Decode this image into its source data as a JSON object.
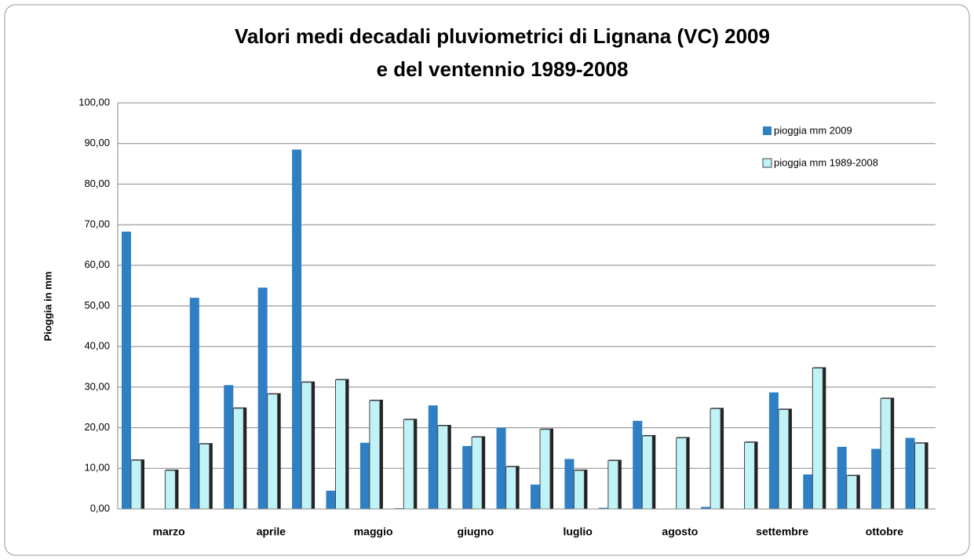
{
  "chart_data": {
    "type": "bar",
    "title": "Valori medi decadali pluviometrici di Lignana (VC) 2009",
    "subtitle": "e del ventennio 1989-2008",
    "y_label": "Pioggia in mm",
    "categories": [
      null,
      "marzo",
      null,
      null,
      "aprile",
      null,
      null,
      "maggio",
      null,
      null,
      "giugno",
      null,
      null,
      "luglio",
      null,
      null,
      "agosto",
      null,
      null,
      "settembre",
      null,
      null,
      "ottobre",
      null
    ],
    "series": [
      {
        "name": "pioggia mm 2009",
        "color": "#2e7fc4",
        "values": [
          68.3,
          0,
          52,
          30.5,
          54.5,
          88.5,
          4.5,
          16.3,
          0.2,
          25.5,
          15.5,
          20,
          6,
          12.3,
          0.3,
          21.7,
          0,
          0.5,
          0,
          28.7,
          8.5,
          15.3,
          14.8,
          17.5
        ]
      },
      {
        "name": "pioggia mm 1989-2008",
        "color": "#bff3f8",
        "values": [
          12,
          9.5,
          16,
          24.8,
          28.3,
          31.2,
          31.8,
          26.7,
          22,
          20.5,
          17.7,
          10.4,
          19.6,
          9.5,
          11.9,
          18,
          17.5,
          24.7,
          16.4,
          24.5,
          34.7,
          8.2,
          27.2,
          16.2
        ]
      }
    ],
    "ylim": [
      0,
      100
    ],
    "yticks": [
      {
        "value": 0,
        "label": "0,00"
      },
      {
        "value": 10,
        "label": "10,00"
      },
      {
        "value": 20,
        "label": "20,00"
      },
      {
        "value": 30,
        "label": "30,00"
      },
      {
        "value": 40,
        "label": "40,00"
      },
      {
        "value": 50,
        "label": "50,00"
      },
      {
        "value": 60,
        "label": "60,00"
      },
      {
        "value": 70,
        "label": "70,00"
      },
      {
        "value": 80,
        "label": "80,00"
      },
      {
        "value": 90,
        "label": "90,00"
      },
      {
        "value": 100,
        "label": "100,00"
      }
    ],
    "grid": true,
    "legend": "top-right"
  }
}
